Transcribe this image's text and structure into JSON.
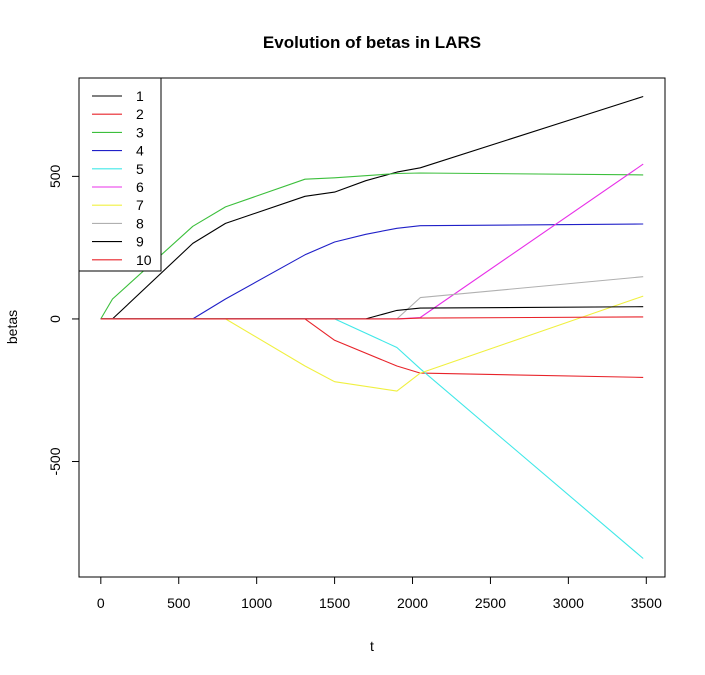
{
  "chart_data": {
    "type": "line",
    "title": "Evolution of betas in LARS",
    "xlabel": "t",
    "ylabel": "betas",
    "xlim": [
      -140,
      3620
    ],
    "ylim": [
      -905,
      845
    ],
    "xticks": [
      0,
      500,
      1000,
      1500,
      2000,
      2500,
      3000,
      3500
    ],
    "yticks": [
      -500,
      0,
      500
    ],
    "xtick_labels": [
      "0",
      "500",
      "1000",
      "1500",
      "2000",
      "2500",
      "3000",
      "3500"
    ],
    "ytick_labels": [
      "-500",
      "0",
      "500"
    ],
    "grid": false,
    "legend_position": "top-left",
    "series": [
      {
        "name": "1",
        "color": "#000000",
        "x": [
          0,
          75,
          590,
          800,
          1310,
          1500,
          1700,
          1900,
          2050,
          3480
        ],
        "y": [
          0,
          0,
          265,
          335,
          430,
          445,
          485,
          515,
          530,
          780
        ]
      },
      {
        "name": "2",
        "color": "#e8232a",
        "x": [
          0,
          1310,
          1500,
          1900,
          2050,
          3480
        ],
        "y": [
          0,
          0,
          -75,
          -165,
          -190,
          -205
        ]
      },
      {
        "name": "3",
        "color": "#3cbf3c",
        "x": [
          0,
          75,
          590,
          800,
          1310,
          1500,
          1900,
          2050,
          3480
        ],
        "y": [
          0,
          70,
          325,
          393,
          490,
          495,
          510,
          512,
          505
        ]
      },
      {
        "name": "4",
        "color": "#2020c8",
        "x": [
          0,
          590,
          800,
          1310,
          1500,
          1700,
          1900,
          2050,
          3480
        ],
        "y": [
          0,
          0,
          70,
          225,
          270,
          297,
          318,
          327,
          333
        ]
      },
      {
        "name": "5",
        "color": "#40e8e8",
        "x": [
          0,
          1500,
          1900,
          2050,
          3480
        ],
        "y": [
          0,
          0,
          -100,
          -175,
          -840
        ]
      },
      {
        "name": "6",
        "color": "#e830e8",
        "x": [
          0,
          1900,
          2050,
          3480
        ],
        "y": [
          0,
          0,
          5,
          543
        ]
      },
      {
        "name": "7",
        "color": "#f0f040",
        "x": [
          0,
          800,
          1310,
          1500,
          1900,
          2050,
          3480
        ],
        "y": [
          0,
          0,
          -165,
          -220,
          -253,
          -190,
          80
        ]
      },
      {
        "name": "8",
        "color": "#b0b0b0",
        "x": [
          0,
          1900,
          2050,
          3480
        ],
        "y": [
          0,
          0,
          75,
          148
        ]
      },
      {
        "name": "9",
        "color": "#000000",
        "x": [
          0,
          1700,
          1900,
          2050,
          3480
        ],
        "y": [
          0,
          0,
          30,
          38,
          43
        ]
      },
      {
        "name": "10",
        "color": "#e8232a",
        "x": [
          0,
          1900,
          2050,
          3480
        ],
        "y": [
          0,
          0,
          3,
          7
        ]
      }
    ]
  }
}
